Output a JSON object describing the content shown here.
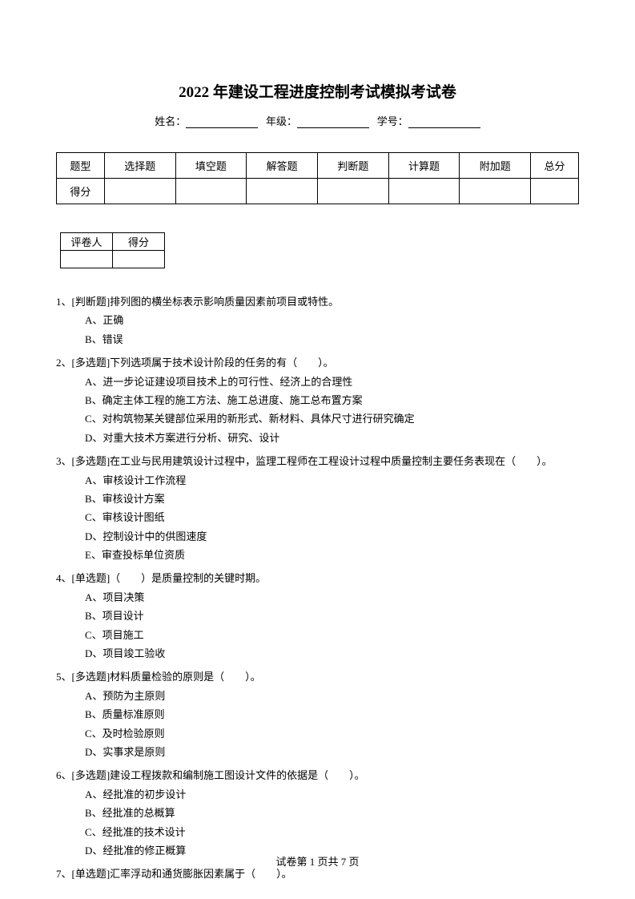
{
  "title": "2022 年建设工程进度控制考试模拟考试卷",
  "info": {
    "name_label": "姓名：",
    "grade_label": "年级：",
    "id_label": "学号："
  },
  "score_table": {
    "headers": [
      "题型",
      "选择题",
      "填空题",
      "解答题",
      "判断题",
      "计算题",
      "附加题",
      "总分"
    ],
    "row_label": "得分"
  },
  "grader_table": {
    "col1": "评卷人",
    "col2": "得分"
  },
  "questions": [
    {
      "num": "1、",
      "type": "[判断题]",
      "stem": "排列图的横坐标表示影响质量因素前项目或特性。",
      "options": [
        "A、正确",
        "B、错误"
      ]
    },
    {
      "num": "2、",
      "type": "[多选题]",
      "stem": "下列选项属于技术设计阶段的任务的有（　　）。",
      "options": [
        "A、进一步论证建设项目技术上的可行性、经济上的合理性",
        "B、确定主体工程的施工方法、施工总进度、施工总布置方案",
        "C、对构筑物某关键部位采用的新形式、新材料、具体尺寸进行研究确定",
        "D、对重大技术方案进行分析、研究、设计"
      ]
    },
    {
      "num": "3、",
      "type": "[多选题]",
      "stem": "在工业与民用建筑设计过程中，监理工程师在工程设计过程中质量控制主要任务表现在（　　）。",
      "options": [
        "A、审核设计工作流程",
        "B、审核设计方案",
        "C、审核设计图纸",
        "D、控制设计中的供图速度",
        "E、审查投标单位资质"
      ]
    },
    {
      "num": "4、",
      "type": "[单选题]",
      "stem": "（　　）是质量控制的关键时期。",
      "options": [
        "A、项目决策",
        "B、项目设计",
        "C、项目施工",
        "D、项目竣工验收"
      ]
    },
    {
      "num": "5、",
      "type": "[多选题]",
      "stem": "材料质量检验的原则是（　　）。",
      "options": [
        "A、预防为主原则",
        "B、质量标准原则",
        "C、及时检验原则",
        "D、实事求是原则"
      ]
    },
    {
      "num": "6、",
      "type": "[多选题]",
      "stem": "建设工程拨款和编制施工图设计文件的依据是（　　）。",
      "options": [
        "A、经批准的初步设计",
        "B、经批准的总概算",
        "C、经批准的技术设计",
        "D、经批准的修正概算"
      ]
    },
    {
      "num": "7、",
      "type": "[单选题]",
      "stem": "汇率浮动和通货膨胀因素属于（　　）。",
      "options": []
    }
  ],
  "footer": "试卷第 1 页共 7 页"
}
